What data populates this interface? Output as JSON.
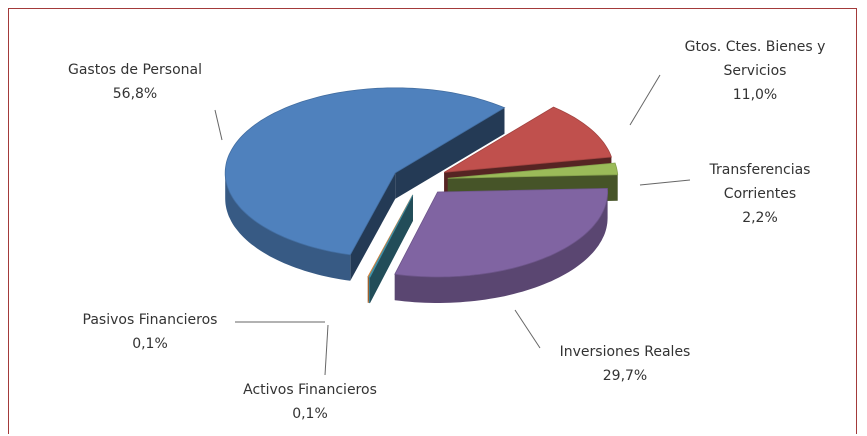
{
  "chart_data": {
    "type": "pie3d",
    "categories": [
      "Gtos. Ctes. Bienes  y Servicios",
      "Transferencias Corrientes",
      "Inversiones Reales",
      "Activos Financieros",
      "Pasivos Financieros",
      "Gastos de Personal"
    ],
    "values": [
      11.0,
      2.2,
      29.7,
      0.1,
      0.1,
      56.8
    ],
    "value_labels": [
      "11,0%",
      "2,2%",
      "29,7%",
      "0,1%",
      "0,1%",
      "56,8%"
    ],
    "colors": [
      "#c0504d",
      "#9bbb59",
      "#8064a2",
      "#4bacc6",
      "#f79646",
      "#4f81bd"
    ]
  }
}
